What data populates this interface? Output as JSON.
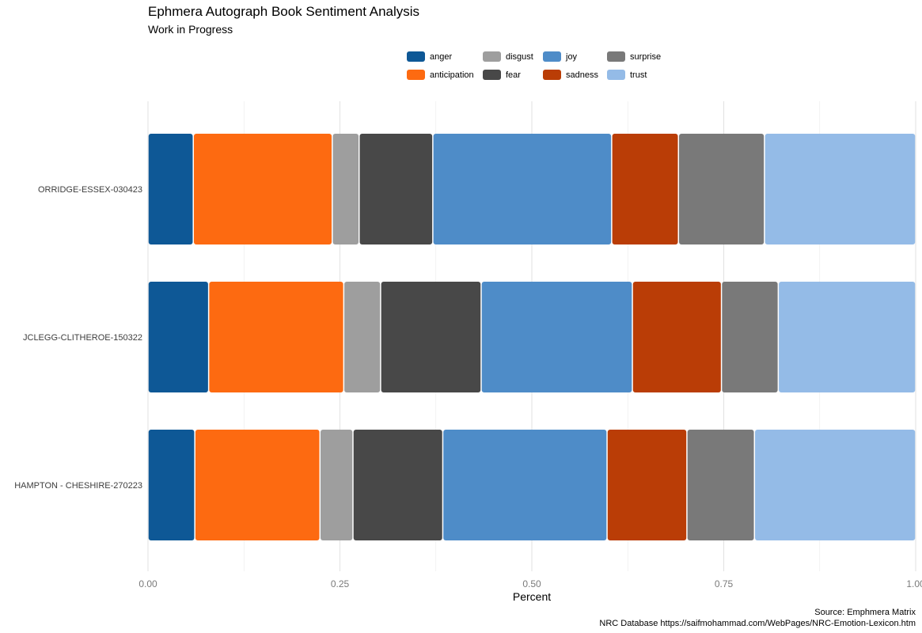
{
  "chart_data": {
    "type": "bar",
    "orientation": "horizontal",
    "stacked": true,
    "title": "Ephmera Autograph Book Sentiment Analysis",
    "subtitle": "Work in Progress",
    "xlabel": "Percent",
    "ylabel": "",
    "xlim": [
      0,
      1
    ],
    "x_ticks": [
      0,
      0.25,
      0.5,
      0.75,
      1.0
    ],
    "x_tick_labels": [
      "0.00",
      "0.25",
      "0.50",
      "0.75",
      "1.00"
    ],
    "grid": true,
    "legend_position": "top",
    "categories": [
      "ORRIDGE-ESSEX-030423",
      "JCLEGG-CLITHEROE-150322",
      "HAMPTON - CHESHIRE-270223"
    ],
    "series": [
      {
        "name": "anger",
        "color": "#0E5896",
        "values": [
          0.059,
          0.079,
          0.061
        ]
      },
      {
        "name": "anticipation",
        "color": "#FD6A11",
        "values": [
          0.181,
          0.176,
          0.163
        ]
      },
      {
        "name": "disgust",
        "color": "#9E9E9E",
        "values": [
          0.035,
          0.048,
          0.043
        ]
      },
      {
        "name": "fear",
        "color": "#484848",
        "values": [
          0.096,
          0.131,
          0.117
        ]
      },
      {
        "name": "joy",
        "color": "#4E8CC8",
        "values": [
          0.233,
          0.197,
          0.214
        ]
      },
      {
        "name": "sadness",
        "color": "#BA3D06",
        "values": [
          0.087,
          0.116,
          0.104
        ]
      },
      {
        "name": "surprise",
        "color": "#797979",
        "values": [
          0.112,
          0.074,
          0.088
        ]
      },
      {
        "name": "trust",
        "color": "#94BBE7",
        "values": [
          0.197,
          0.179,
          0.21
        ]
      }
    ],
    "caption": [
      "Source: Emphmera Matrix",
      "NRC Database https://saifmohammad.com/WebPages/NRC-Emotion-Lexicon.htm"
    ]
  }
}
